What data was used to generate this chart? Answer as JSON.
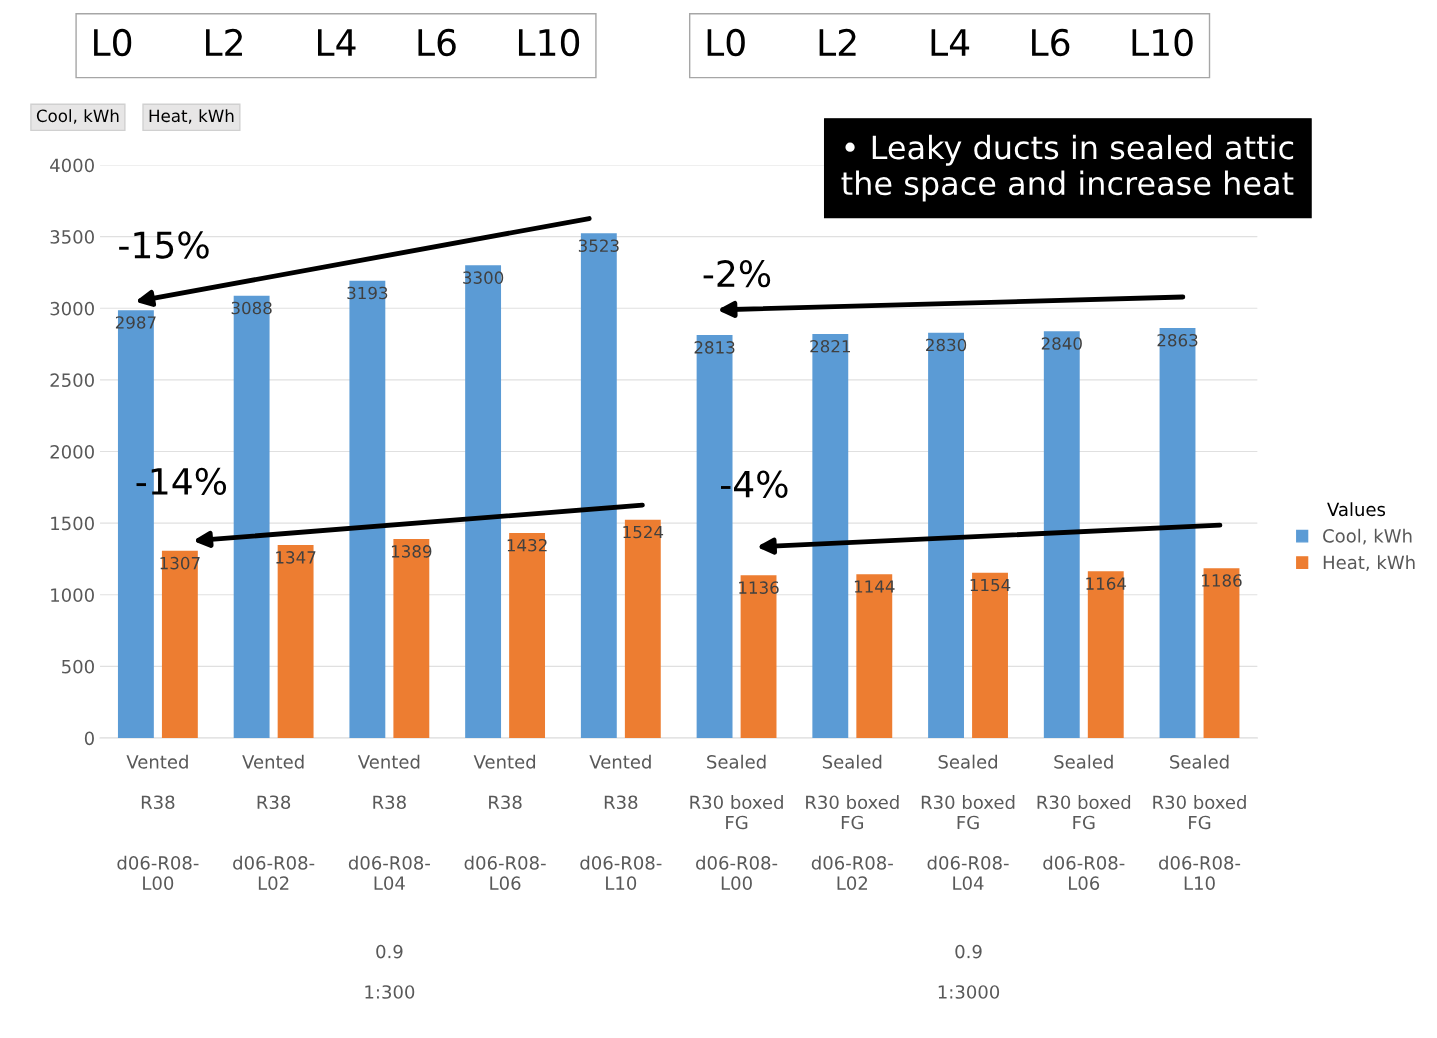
{
  "chart_data": {
    "type": "bar",
    "categories": [
      "Vented\n\nR38\n\n\nd06-R08-\nL00",
      "Vented\n\nR38\n\n\nd06-R08-\nL02",
      "Vented\n\nR38\n\n\nd06-R08-\nL04",
      "Vented\n\nR38\n\n\nd06-R08-\nL06",
      "Vented\n\nR38\n\n\nd06-R08-\nL10",
      "Sealed\n\nR30 boxed\nFG\n\nd06-R08-\nL00",
      "Sealed\n\nR30 boxed\nFG\n\nd06-R08-\nL02",
      "Sealed\n\nR30 boxed\nFG\n\nd06-R08-\nL04",
      "Sealed\n\nR30 boxed\nFG\n\nd06-R08-\nL06",
      "Sealed\n\nR30 boxed\nFG\n\nd06-R08-\nL10"
    ],
    "series": [
      {
        "name": "Cool, kWh",
        "color": "#5b9bd5",
        "values": [
          2987,
          3088,
          3193,
          3300,
          3523,
          2813,
          2821,
          2830,
          2840,
          2863
        ]
      },
      {
        "name": "Heat, kWh",
        "color": "#ed7d31",
        "values": [
          1307,
          1347,
          1389,
          1432,
          1524,
          1136,
          1144,
          1154,
          1164,
          1186
        ]
      }
    ],
    "ylim": [
      0,
      4000
    ],
    "yticks": [
      0,
      500,
      1000,
      1500,
      2000,
      2500,
      3000,
      3500,
      4000
    ],
    "grid": "y",
    "legend": "right",
    "legend_title": "Values",
    "data_labels": true,
    "annotations": [
      "L0      L2      L4     L6     L10",
      "L0      L2      L4     L6     L10",
      "Cool, kWh",
      "Heat, kWh",
      "• Leaky ducts in sealed attic\nthe space and increase heat",
      "-15%",
      "-2%",
      "-14%",
      "-4%",
      "0.9\n\n1:300",
      "0.9\n\n1:3000"
    ]
  }
}
